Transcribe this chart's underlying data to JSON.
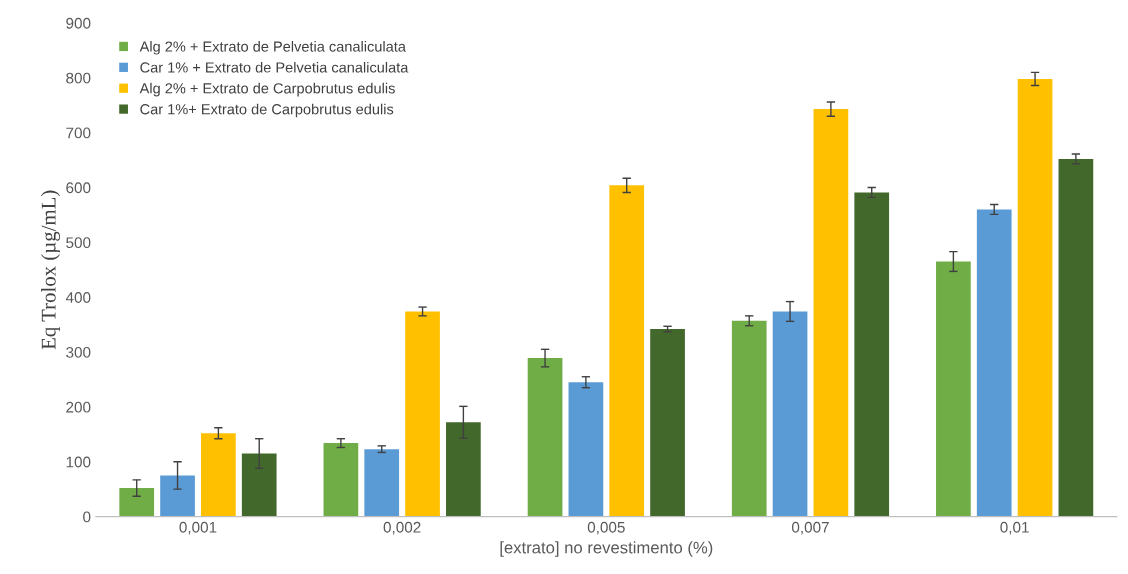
{
  "chart_data": {
    "type": "bar",
    "xlabel": "[extrato] no revestimento (%)",
    "ylabel": "Eq Trolox (µg/mL)",
    "categories": [
      "0,001",
      "0,002",
      "0,005",
      "0,007",
      "0,01"
    ],
    "ylim": [
      0,
      900
    ],
    "yticks": [
      0,
      100,
      200,
      300,
      400,
      500,
      600,
      700,
      800,
      900
    ],
    "grid": false,
    "legend": "top left",
    "series": [
      {
        "name": "Alg 2% + Extrato de Pelvetia canaliculata",
        "color": "#70ad47",
        "values": [
          52,
          134,
          289,
          357,
          465
        ],
        "errors": [
          15,
          8,
          16,
          9,
          18
        ]
      },
      {
        "name": "Car 1% + Extrato de Pelvetia canaliculata",
        "color": "#5b9bd5",
        "values": [
          75,
          123,
          245,
          374,
          560
        ],
        "errors": [
          25,
          6,
          10,
          18,
          9
        ]
      },
      {
        "name": "Alg 2% + Extrato de Carpobrutus edulis",
        "color": "#ffc000",
        "values": [
          152,
          374,
          604,
          743,
          798
        ],
        "errors": [
          10,
          8,
          13,
          13,
          12
        ]
      },
      {
        "name": "Car 1%+ Extrato de Carpobrutus edulis",
        "color": "#43682b",
        "values": [
          115,
          172,
          342,
          591,
          652
        ],
        "errors": [
          27,
          29,
          5,
          9,
          9
        ]
      }
    ]
  }
}
